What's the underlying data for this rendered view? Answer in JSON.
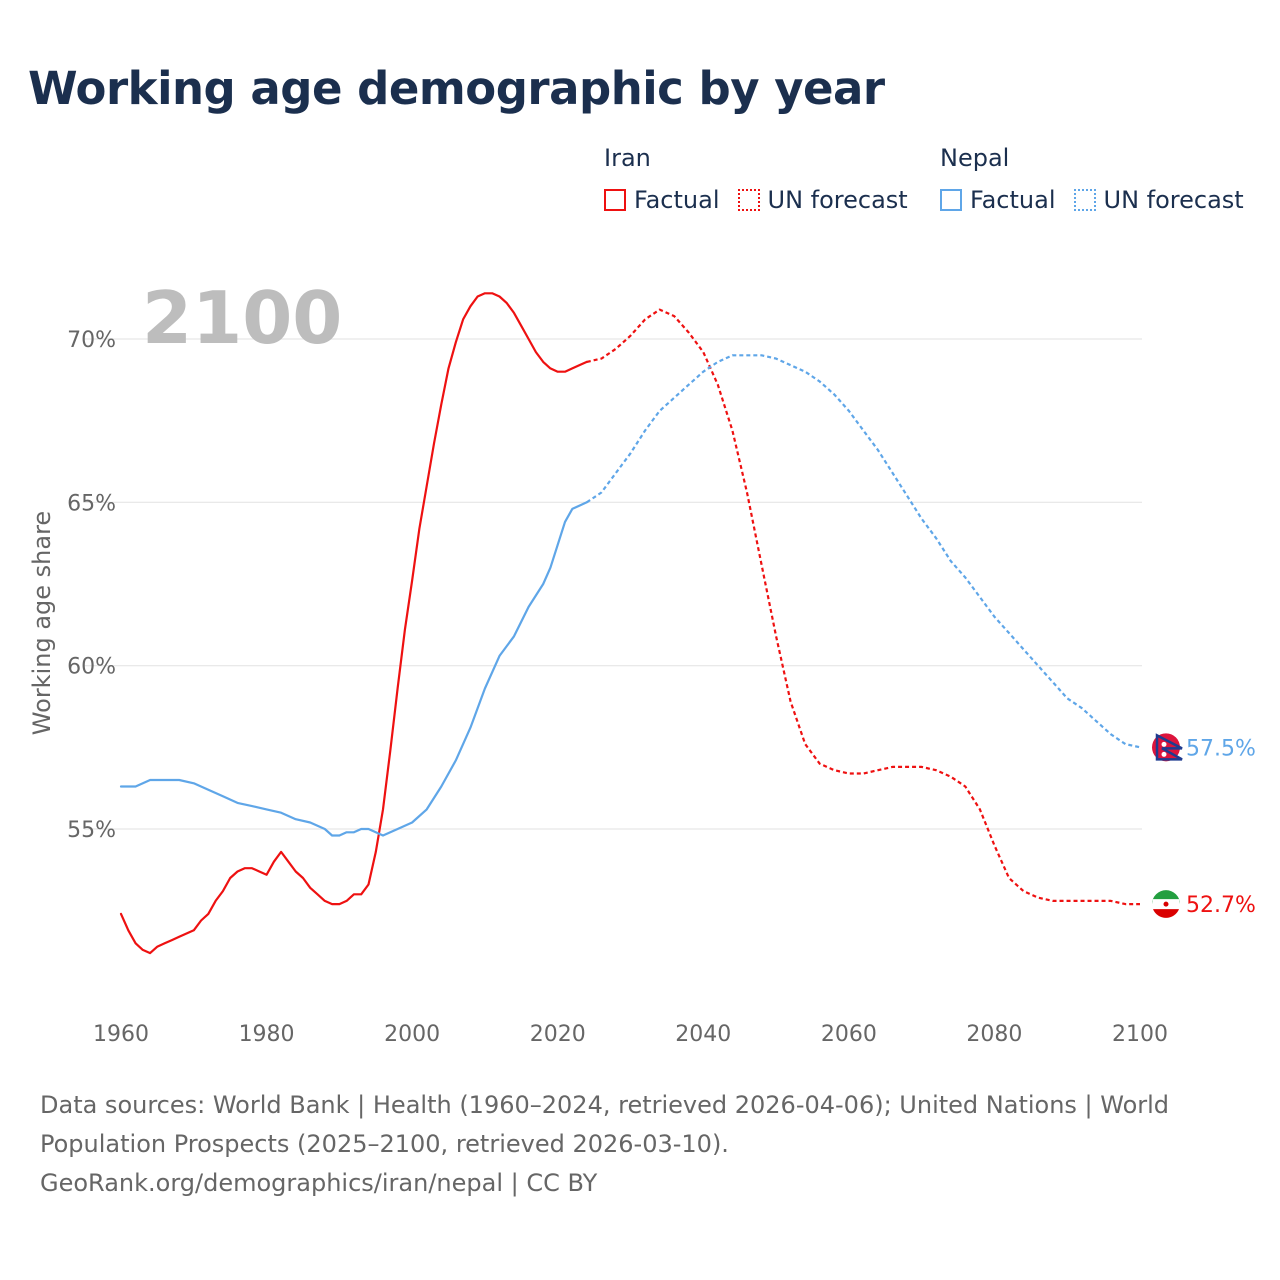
{
  "chart_data": {
    "type": "line",
    "title": "Working age demographic by year",
    "ylabel": "Working age share",
    "xlabel": "",
    "year_watermark": "2100",
    "xlim": [
      1960,
      2103
    ],
    "ylim": [
      50,
      72
    ],
    "xticks": [
      1960,
      1980,
      2000,
      2020,
      2040,
      2060,
      2080,
      2100
    ],
    "yticks": [
      {
        "value": 55,
        "label": "55%"
      },
      {
        "value": 60,
        "label": "60%"
      },
      {
        "value": 65,
        "label": "65%"
      },
      {
        "value": 70,
        "label": "70%"
      }
    ],
    "series": [
      {
        "name": "Iran",
        "variant": "Factual",
        "color": "#ee1111",
        "style": "solid",
        "points": [
          [
            1960,
            52.4
          ],
          [
            1961,
            51.9
          ],
          [
            1962,
            51.5
          ],
          [
            1963,
            51.3
          ],
          [
            1964,
            51.2
          ],
          [
            1965,
            51.4
          ],
          [
            1966,
            51.5
          ],
          [
            1967,
            51.6
          ],
          [
            1968,
            51.7
          ],
          [
            1969,
            51.8
          ],
          [
            1970,
            51.9
          ],
          [
            1971,
            52.2
          ],
          [
            1972,
            52.4
          ],
          [
            1973,
            52.8
          ],
          [
            1974,
            53.1
          ],
          [
            1975,
            53.5
          ],
          [
            1976,
            53.7
          ],
          [
            1977,
            53.8
          ],
          [
            1978,
            53.8
          ],
          [
            1979,
            53.7
          ],
          [
            1980,
            53.6
          ],
          [
            1981,
            54.0
          ],
          [
            1982,
            54.3
          ],
          [
            1983,
            54.0
          ],
          [
            1984,
            53.7
          ],
          [
            1985,
            53.5
          ],
          [
            1986,
            53.2
          ],
          [
            1987,
            53.0
          ],
          [
            1988,
            52.8
          ],
          [
            1989,
            52.7
          ],
          [
            1990,
            52.7
          ],
          [
            1991,
            52.8
          ],
          [
            1992,
            53.0
          ],
          [
            1993,
            53.0
          ],
          [
            1994,
            53.3
          ],
          [
            1995,
            54.3
          ],
          [
            1996,
            55.6
          ],
          [
            1997,
            57.4
          ],
          [
            1998,
            59.3
          ],
          [
            1999,
            61.1
          ],
          [
            2000,
            62.6
          ],
          [
            2001,
            64.2
          ],
          [
            2002,
            65.5
          ],
          [
            2003,
            66.8
          ],
          [
            2004,
            68.0
          ],
          [
            2005,
            69.1
          ],
          [
            2006,
            69.9
          ],
          [
            2007,
            70.6
          ],
          [
            2008,
            71.0
          ],
          [
            2009,
            71.3
          ],
          [
            2010,
            71.4
          ],
          [
            2011,
            71.4
          ],
          [
            2012,
            71.3
          ],
          [
            2013,
            71.1
          ],
          [
            2014,
            70.8
          ],
          [
            2015,
            70.4
          ],
          [
            2016,
            70.0
          ],
          [
            2017,
            69.6
          ],
          [
            2018,
            69.3
          ],
          [
            2019,
            69.1
          ],
          [
            2020,
            69.0
          ],
          [
            2021,
            69.0
          ],
          [
            2022,
            69.1
          ],
          [
            2023,
            69.2
          ],
          [
            2024,
            69.3
          ]
        ]
      },
      {
        "name": "Iran",
        "variant": "UN forecast",
        "color": "#ee1111",
        "style": "dotted",
        "points": [
          [
            2024,
            69.3
          ],
          [
            2026,
            69.4
          ],
          [
            2028,
            69.7
          ],
          [
            2030,
            70.1
          ],
          [
            2032,
            70.6
          ],
          [
            2034,
            70.9
          ],
          [
            2036,
            70.7
          ],
          [
            2038,
            70.2
          ],
          [
            2040,
            69.6
          ],
          [
            2042,
            68.6
          ],
          [
            2044,
            67.2
          ],
          [
            2046,
            65.3
          ],
          [
            2048,
            63.1
          ],
          [
            2050,
            60.9
          ],
          [
            2052,
            58.9
          ],
          [
            2054,
            57.6
          ],
          [
            2056,
            57.0
          ],
          [
            2058,
            56.8
          ],
          [
            2060,
            56.7
          ],
          [
            2062,
            56.7
          ],
          [
            2064,
            56.8
          ],
          [
            2066,
            56.9
          ],
          [
            2068,
            56.9
          ],
          [
            2070,
            56.9
          ],
          [
            2072,
            56.8
          ],
          [
            2074,
            56.6
          ],
          [
            2076,
            56.3
          ],
          [
            2078,
            55.6
          ],
          [
            2080,
            54.5
          ],
          [
            2082,
            53.5
          ],
          [
            2084,
            53.1
          ],
          [
            2086,
            52.9
          ],
          [
            2088,
            52.8
          ],
          [
            2090,
            52.8
          ],
          [
            2092,
            52.8
          ],
          [
            2094,
            52.8
          ],
          [
            2096,
            52.8
          ],
          [
            2098,
            52.7
          ],
          [
            2100,
            52.7
          ]
        ]
      },
      {
        "name": "Nepal",
        "variant": "Factual",
        "color": "#5fa6e8",
        "style": "solid",
        "points": [
          [
            1960,
            56.3
          ],
          [
            1962,
            56.3
          ],
          [
            1964,
            56.5
          ],
          [
            1966,
            56.5
          ],
          [
            1968,
            56.5
          ],
          [
            1970,
            56.4
          ],
          [
            1972,
            56.2
          ],
          [
            1974,
            56.0
          ],
          [
            1976,
            55.8
          ],
          [
            1978,
            55.7
          ],
          [
            1980,
            55.6
          ],
          [
            1982,
            55.5
          ],
          [
            1984,
            55.3
          ],
          [
            1986,
            55.2
          ],
          [
            1988,
            55.0
          ],
          [
            1989,
            54.8
          ],
          [
            1990,
            54.8
          ],
          [
            1991,
            54.9
          ],
          [
            1992,
            54.9
          ],
          [
            1993,
            55.0
          ],
          [
            1994,
            55.0
          ],
          [
            1995,
            54.9
          ],
          [
            1996,
            54.8
          ],
          [
            1998,
            55.0
          ],
          [
            2000,
            55.2
          ],
          [
            2002,
            55.6
          ],
          [
            2004,
            56.3
          ],
          [
            2006,
            57.1
          ],
          [
            2008,
            58.1
          ],
          [
            2010,
            59.3
          ],
          [
            2012,
            60.3
          ],
          [
            2014,
            60.9
          ],
          [
            2016,
            61.8
          ],
          [
            2018,
            62.5
          ],
          [
            2019,
            63.0
          ],
          [
            2020,
            63.7
          ],
          [
            2021,
            64.4
          ],
          [
            2022,
            64.8
          ],
          [
            2023,
            64.9
          ],
          [
            2024,
            65.0
          ]
        ]
      },
      {
        "name": "Nepal",
        "variant": "UN forecast",
        "color": "#5fa6e8",
        "style": "dotted",
        "points": [
          [
            2024,
            65.0
          ],
          [
            2026,
            65.3
          ],
          [
            2028,
            65.9
          ],
          [
            2030,
            66.5
          ],
          [
            2032,
            67.2
          ],
          [
            2034,
            67.8
          ],
          [
            2036,
            68.2
          ],
          [
            2038,
            68.6
          ],
          [
            2040,
            69.0
          ],
          [
            2042,
            69.3
          ],
          [
            2044,
            69.5
          ],
          [
            2046,
            69.5
          ],
          [
            2048,
            69.5
          ],
          [
            2050,
            69.4
          ],
          [
            2052,
            69.2
          ],
          [
            2054,
            69.0
          ],
          [
            2056,
            68.7
          ],
          [
            2058,
            68.3
          ],
          [
            2060,
            67.8
          ],
          [
            2062,
            67.2
          ],
          [
            2064,
            66.6
          ],
          [
            2066,
            65.9
          ],
          [
            2068,
            65.2
          ],
          [
            2070,
            64.5
          ],
          [
            2072,
            63.9
          ],
          [
            2074,
            63.2
          ],
          [
            2076,
            62.7
          ],
          [
            2078,
            62.1
          ],
          [
            2080,
            61.5
          ],
          [
            2082,
            61.0
          ],
          [
            2084,
            60.5
          ],
          [
            2086,
            60.0
          ],
          [
            2088,
            59.5
          ],
          [
            2090,
            59.0
          ],
          [
            2092,
            58.7
          ],
          [
            2094,
            58.3
          ],
          [
            2096,
            57.9
          ],
          [
            2098,
            57.6
          ],
          [
            2100,
            57.5
          ]
        ]
      }
    ],
    "end_labels": [
      {
        "name": "Nepal",
        "value": 57.5,
        "label": "57.5%",
        "color": "#5fa6e8"
      },
      {
        "name": "Iran",
        "value": 52.7,
        "label": "52.7%",
        "color": "#ee1111"
      }
    ]
  },
  "legend": {
    "groups": [
      {
        "country": "Iran",
        "factual": "Factual",
        "forecast": "UN forecast"
      },
      {
        "country": "Nepal",
        "factual": "Factual",
        "forecast": "UN forecast"
      }
    ]
  },
  "footer": {
    "line1": "Data sources: World Bank | Health (1960–2024, retrieved 2026-04-06); United Nations | World",
    "line2": "Population Prospects (2025–2100, retrieved 2026-03-10).",
    "line3": "GeoRank.org/demographics/iran/nepal | CC BY"
  }
}
